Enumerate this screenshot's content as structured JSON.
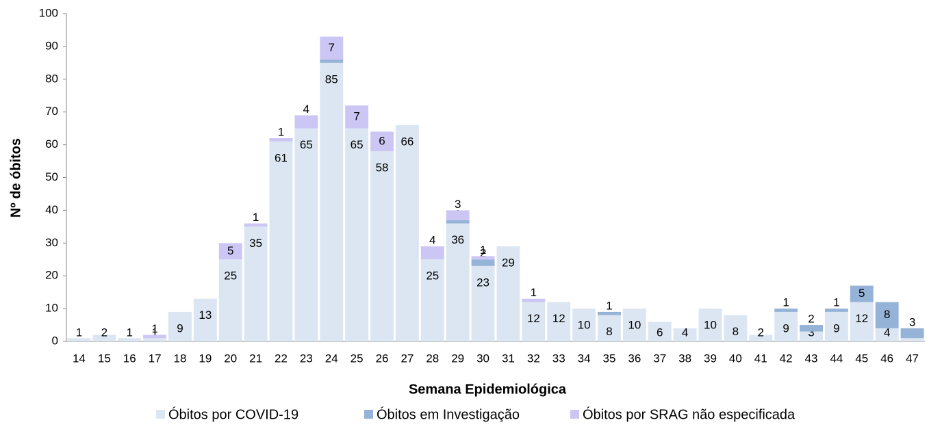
{
  "chart_data": {
    "type": "stacked_bar",
    "x_label": "Semana Epidemiológica",
    "y_label": "Nº de óbitos",
    "categories": [
      "14",
      "15",
      "16",
      "17",
      "18",
      "19",
      "20",
      "21",
      "22",
      "23",
      "24",
      "25",
      "26",
      "27",
      "28",
      "29",
      "30",
      "31",
      "32",
      "33",
      "34",
      "35",
      "36",
      "37",
      "38",
      "39",
      "40",
      "41",
      "42",
      "43",
      "44",
      "45",
      "46",
      "47"
    ],
    "series": [
      {
        "name": "Óbitos por COVID-19",
        "color": "#dce6f2",
        "values": [
          1,
          2,
          1,
          1,
          9,
          13,
          25,
          35,
          61,
          65,
          85,
          65,
          58,
          66,
          25,
          36,
          23,
          29,
          12,
          12,
          10,
          8,
          10,
          6,
          4,
          10,
          8,
          2,
          9,
          3,
          9,
          12,
          4,
          1
        ]
      },
      {
        "name": "Óbitos em Investigação",
        "color": "#95b3d7",
        "values": [
          0,
          0,
          0,
          0,
          0,
          0,
          0,
          0,
          0,
          0,
          1,
          0,
          0,
          0,
          0,
          1,
          2,
          0,
          0,
          0,
          0,
          1,
          0,
          0,
          0,
          0,
          0,
          0,
          1,
          2,
          1,
          5,
          8,
          3
        ]
      },
      {
        "name": "Óbitos por SRAG não especificada",
        "color": "#ccc6f4",
        "values": [
          0,
          0,
          0,
          1,
          0,
          0,
          5,
          1,
          1,
          4,
          7,
          7,
          6,
          0,
          4,
          3,
          1,
          0,
          1,
          0,
          0,
          0,
          0,
          0,
          0,
          0,
          0,
          0,
          0,
          0,
          0,
          0,
          0,
          0
        ]
      }
    ],
    "ylim": [
      0,
      100
    ],
    "yticks": [
      0,
      10,
      20,
      30,
      40,
      50,
      60,
      70,
      80,
      90,
      100
    ],
    "grid": false
  }
}
